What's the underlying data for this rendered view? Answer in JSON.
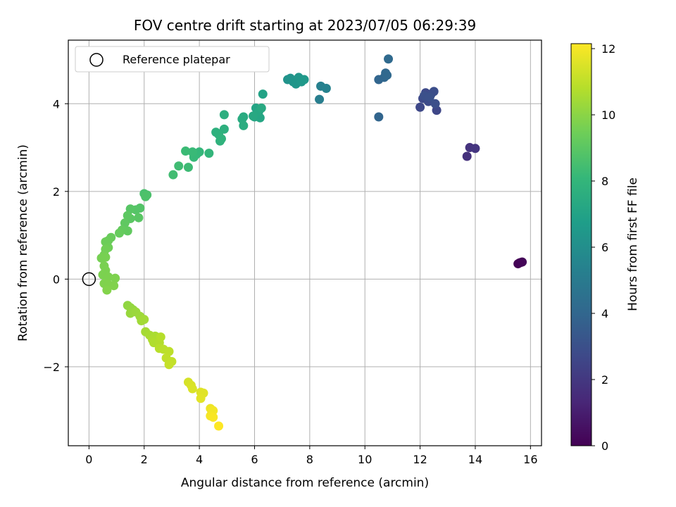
{
  "chart_data": {
    "type": "scatter",
    "title": "FOV centre drift starting at 2023/07/05 06:29:39",
    "xlabel": "Angular distance from reference (arcmin)",
    "ylabel": "Rotation from reference (arcmin)",
    "xlim": [
      -0.75,
      16.4
    ],
    "ylim": [
      -3.8,
      5.45
    ],
    "xticks": [
      0,
      2,
      4,
      6,
      8,
      10,
      12,
      14,
      16
    ],
    "yticks": [
      -2,
      0,
      2,
      4
    ],
    "grid": true,
    "legend": {
      "position": "top-left",
      "entries": [
        "Reference platepar"
      ]
    },
    "reference_point": {
      "x": 0,
      "y": 0
    },
    "colorbar": {
      "label": "Hours from first FF file",
      "colormap": "viridis",
      "range": [
        0,
        12.15
      ],
      "ticks": [
        0,
        2,
        4,
        6,
        8,
        10,
        12
      ],
      "palette": [
        "#440154",
        "#482878",
        "#3e4989",
        "#31688e",
        "#26828e",
        "#1f9e89",
        "#35b779",
        "#6ece58",
        "#b5de2b",
        "#fde725"
      ]
    },
    "points": [
      [
        15.55,
        0.35,
        0.0
      ],
      [
        15.6,
        0.37,
        0.05
      ],
      [
        15.65,
        0.38,
        0.1
      ],
      [
        15.7,
        0.39,
        0.15
      ],
      [
        13.7,
        2.8,
        1.7
      ],
      [
        13.8,
        3.0,
        1.8
      ],
      [
        14.0,
        2.98,
        1.9
      ],
      [
        12.6,
        3.85,
        2.6
      ],
      [
        12.0,
        3.92,
        2.65
      ],
      [
        12.1,
        4.12,
        2.7
      ],
      [
        12.2,
        4.25,
        2.75
      ],
      [
        12.3,
        4.05,
        2.8
      ],
      [
        12.4,
        4.22,
        2.85
      ],
      [
        12.5,
        4.28,
        2.9
      ],
      [
        12.55,
        4.0,
        2.95
      ],
      [
        12.15,
        4.18,
        3.0
      ],
      [
        12.35,
        4.15,
        3.05
      ],
      [
        10.5,
        3.7,
        3.9
      ],
      [
        10.5,
        4.55,
        3.95
      ],
      [
        10.7,
        4.6,
        4.0
      ],
      [
        10.75,
        4.7,
        4.05
      ],
      [
        10.8,
        4.65,
        4.1
      ],
      [
        10.85,
        5.02,
        4.15
      ],
      [
        8.35,
        4.1,
        5.2
      ],
      [
        8.4,
        4.4,
        5.3
      ],
      [
        8.6,
        4.35,
        5.4
      ],
      [
        7.2,
        4.55,
        6.2
      ],
      [
        7.3,
        4.58,
        6.25
      ],
      [
        7.4,
        4.5,
        6.3
      ],
      [
        7.5,
        4.45,
        6.35
      ],
      [
        7.6,
        4.6,
        6.4
      ],
      [
        7.7,
        4.5,
        6.45
      ],
      [
        7.8,
        4.55,
        6.5
      ],
      [
        6.3,
        4.22,
        7.0
      ],
      [
        6.05,
        3.9,
        7.05
      ],
      [
        6.1,
        3.75,
        7.1
      ],
      [
        6.0,
        3.7,
        7.15
      ],
      [
        6.2,
        3.68,
        7.2
      ],
      [
        6.15,
        3.82,
        7.25
      ],
      [
        5.95,
        3.72,
        7.3
      ],
      [
        6.25,
        3.9,
        7.35
      ],
      [
        5.6,
        3.7,
        7.4
      ],
      [
        5.55,
        3.65,
        7.45
      ],
      [
        5.6,
        3.5,
        7.5
      ],
      [
        4.9,
        3.75,
        7.6
      ],
      [
        4.9,
        3.42,
        7.65
      ],
      [
        4.6,
        3.35,
        7.7
      ],
      [
        4.7,
        3.3,
        7.75
      ],
      [
        4.75,
        3.15,
        7.8
      ],
      [
        4.8,
        3.2,
        7.85
      ],
      [
        4.35,
        2.87,
        8.0
      ],
      [
        4.0,
        2.9,
        8.05
      ],
      [
        3.9,
        2.85,
        8.1
      ],
      [
        3.8,
        2.78,
        8.15
      ],
      [
        3.75,
        2.9,
        8.2
      ],
      [
        3.5,
        2.92,
        8.25
      ],
      [
        3.6,
        2.55,
        8.3
      ],
      [
        3.25,
        2.58,
        8.35
      ],
      [
        3.05,
        2.38,
        8.4
      ],
      [
        2.0,
        1.95,
        8.6
      ],
      [
        2.1,
        1.92,
        8.65
      ],
      [
        2.05,
        1.88,
        8.7
      ],
      [
        1.85,
        1.62,
        8.8
      ],
      [
        1.7,
        1.58,
        8.85
      ],
      [
        1.5,
        1.6,
        8.9
      ],
      [
        1.8,
        1.4,
        8.95
      ],
      [
        1.5,
        1.38,
        9.0
      ],
      [
        1.4,
        1.45,
        9.05
      ],
      [
        1.3,
        1.28,
        9.1
      ],
      [
        1.4,
        1.1,
        9.15
      ],
      [
        1.2,
        1.12,
        9.2
      ],
      [
        1.1,
        1.05,
        9.25
      ],
      [
        0.8,
        0.95,
        9.3
      ],
      [
        0.7,
        0.88,
        9.35
      ],
      [
        0.6,
        0.85,
        9.4
      ],
      [
        0.7,
        0.72,
        9.45
      ],
      [
        0.6,
        0.68,
        9.5
      ],
      [
        0.55,
        0.55,
        9.55
      ],
      [
        0.45,
        0.48,
        9.6
      ],
      [
        0.6,
        0.5,
        9.62
      ],
      [
        0.55,
        0.3,
        9.65
      ],
      [
        0.6,
        0.2,
        9.68
      ],
      [
        0.5,
        0.1,
        9.7
      ],
      [
        0.7,
        0.05,
        9.72
      ],
      [
        0.95,
        0.02,
        9.75
      ],
      [
        0.55,
        -0.1,
        9.78
      ],
      [
        0.7,
        -0.12,
        9.8
      ],
      [
        0.9,
        -0.15,
        9.82
      ],
      [
        0.65,
        -0.25,
        9.85
      ],
      [
        1.4,
        -0.6,
        10.1
      ],
      [
        1.5,
        -0.65,
        10.15
      ],
      [
        1.6,
        -0.7,
        10.2
      ],
      [
        1.5,
        -0.78,
        10.25
      ],
      [
        1.7,
        -0.75,
        10.3
      ],
      [
        1.85,
        -0.85,
        10.35
      ],
      [
        1.9,
        -0.95,
        10.4
      ],
      [
        2.0,
        -0.92,
        10.45
      ],
      [
        2.05,
        -1.2,
        10.5
      ],
      [
        2.2,
        -1.28,
        10.55
      ],
      [
        2.4,
        -1.3,
        10.6
      ],
      [
        2.3,
        -1.38,
        10.65
      ],
      [
        2.35,
        -1.45,
        10.7
      ],
      [
        2.55,
        -1.45,
        10.75
      ],
      [
        2.6,
        -1.32,
        10.8
      ],
      [
        2.55,
        -1.58,
        10.85
      ],
      [
        2.7,
        -1.6,
        10.9
      ],
      [
        2.9,
        -1.65,
        10.95
      ],
      [
        2.8,
        -1.8,
        11.0
      ],
      [
        3.0,
        -1.88,
        11.05
      ],
      [
        2.9,
        -1.95,
        11.1
      ],
      [
        3.6,
        -2.35,
        11.4
      ],
      [
        3.7,
        -2.42,
        11.45
      ],
      [
        3.75,
        -2.5,
        11.5
      ],
      [
        4.05,
        -2.58,
        11.55
      ],
      [
        4.15,
        -2.6,
        11.6
      ],
      [
        4.05,
        -2.72,
        11.65
      ],
      [
        4.4,
        -2.95,
        11.85
      ],
      [
        4.45,
        -3.05,
        11.9
      ],
      [
        4.5,
        -3.0,
        11.95
      ],
      [
        4.4,
        -3.12,
        12.0
      ],
      [
        4.5,
        -3.15,
        12.05
      ],
      [
        4.7,
        -3.35,
        12.15
      ]
    ]
  }
}
